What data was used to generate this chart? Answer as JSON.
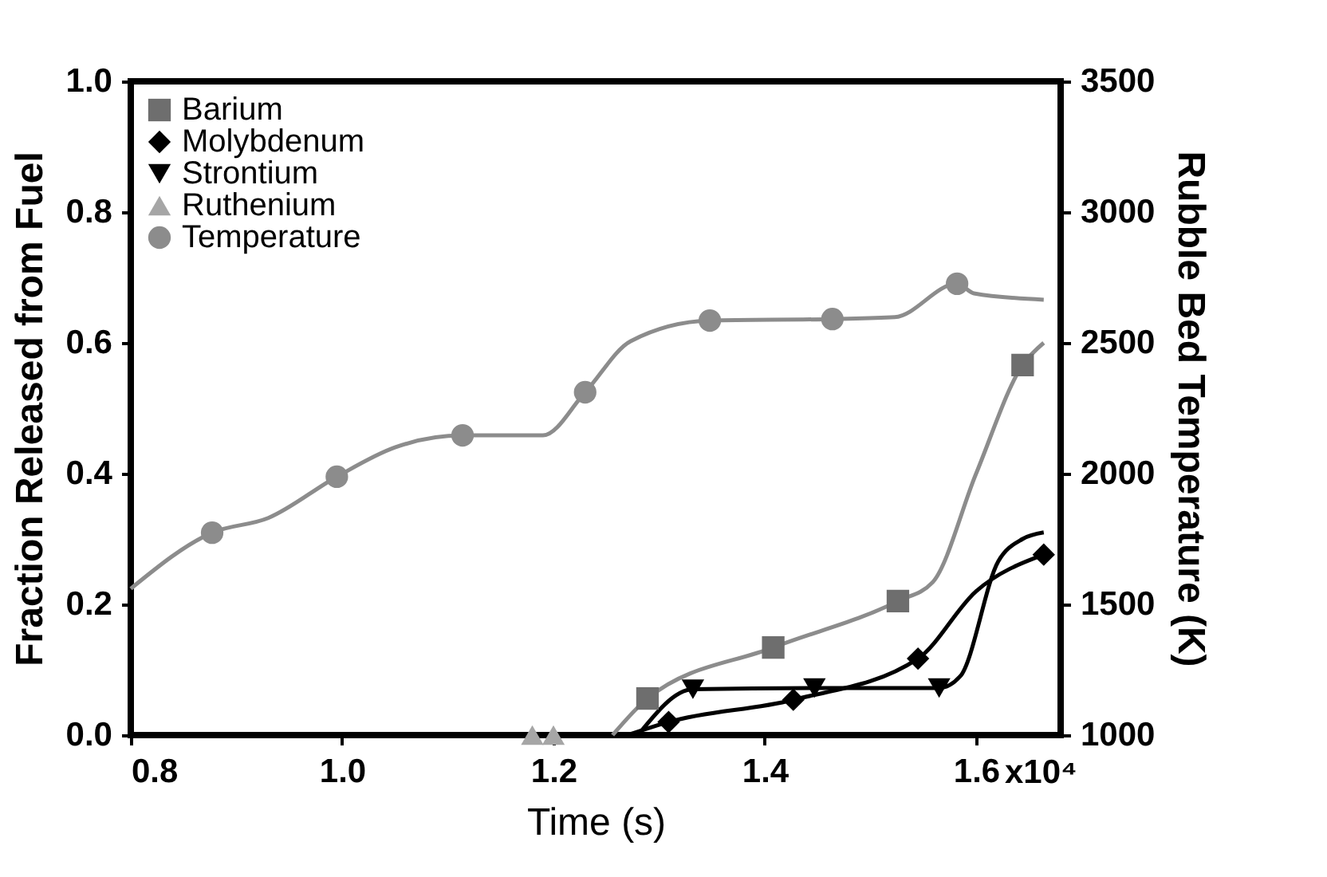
{
  "chart_data": {
    "type": "line",
    "xlabel": "Time (s)",
    "ylabel": "Fraction Released from Fuel",
    "y2label": "Rubble Bed Temperature (K)",
    "xlim": [
      0.8,
      1.68
    ],
    "xticks": [
      {
        "value": 0.8,
        "label": "0.8"
      },
      {
        "value": 1.0,
        "label": "1.0"
      },
      {
        "value": 1.2,
        "label": "1.2"
      },
      {
        "value": 1.4,
        "label": "1.4"
      },
      {
        "value": 1.6,
        "label": "1.6"
      }
    ],
    "annotations": [
      "x10⁴"
    ],
    "ylim": [
      0,
      1
    ],
    "yticks": [
      {
        "value": 0,
        "label": "0.0"
      },
      {
        "value": 0.2,
        "label": "0.2"
      },
      {
        "value": 0.4,
        "label": "0.4"
      },
      {
        "value": 0.6,
        "label": "0.6"
      },
      {
        "value": 0.8,
        "label": "0.8"
      },
      {
        "value": 1,
        "label": "1.0"
      }
    ],
    "y2lim": [
      1000,
      3500
    ],
    "y2ticks": [
      1000,
      1500,
      2000,
      2500,
      3000,
      3500
    ],
    "grid": false,
    "legend": "top left",
    "series": [
      {
        "type": "line",
        "marker": "none",
        "color": "#8c8c8c",
        "x": [
          1.256,
          1.289,
          1.408,
          1.526,
          1.559,
          1.6,
          1.644,
          1.664
        ],
        "values": [
          0,
          0.056,
          0.134,
          0.205,
          0.234,
          0.4,
          0.566,
          0.6
        ]
      },
      {
        "type": "line",
        "marker": "none",
        "color": "#000000",
        "x": [
          1.27,
          1.309,
          1.427,
          1.545,
          1.6,
          1.664
        ],
        "values": [
          0,
          0.02,
          0.054,
          0.117,
          0.22,
          0.276
        ]
      },
      {
        "type": "line",
        "marker": "none",
        "color": "#000000",
        "x": [
          1.28,
          1.332,
          1.447,
          1.565,
          1.585,
          1.621,
          1.644,
          1.664
        ],
        "values": [
          0,
          0.07,
          0.072,
          0.072,
          0.09,
          0.266,
          0.3,
          0.31
        ]
      },
      {
        "type": "line",
        "marker": "none",
        "color": "#8c8c8c",
        "axis": "y2",
        "x": [
          0.8,
          0.877,
          0.93,
          0.995,
          1.05,
          1.114,
          1.19,
          1.23,
          1.273,
          1.348,
          1.464,
          1.523,
          1.582,
          1.598,
          1.664
        ],
        "values": [
          1560,
          1774,
          1830,
          1988,
          2100,
          2146,
          2146,
          2311,
          2506,
          2585,
          2591,
          2598,
          2726,
          2689,
          2665
        ]
      },
      {
        "name": "Barium",
        "type": "scatter",
        "marker": "square",
        "color": "#6e6e6e",
        "x": [
          1.289,
          1.408,
          1.526,
          1.644
        ],
        "values": [
          0.056,
          0.134,
          0.205,
          0.566
        ]
      },
      {
        "name": "Molybdenum",
        "type": "scatter",
        "marker": "diamond",
        "color": "#000000",
        "x": [
          1.309,
          1.427,
          1.545,
          1.664
        ],
        "values": [
          0.02,
          0.054,
          0.117,
          0.276
        ]
      },
      {
        "name": "Strontium",
        "type": "scatter",
        "marker": "triangle-down",
        "color": "#000000",
        "x": [
          1.332,
          1.447,
          1.565
        ],
        "values": [
          0.07,
          0.072,
          0.072
        ]
      },
      {
        "name": "Ruthenium",
        "type": "scatter",
        "marker": "triangle",
        "color": "#a6a6a6",
        "x": [
          1.18,
          1.2
        ],
        "values": [
          0,
          0
        ]
      },
      {
        "name": "Temperature",
        "type": "scatter",
        "marker": "circle",
        "color": "#8c8c8c",
        "axis": "y2",
        "x": [
          0.877,
          0.995,
          1.114,
          1.23,
          1.348,
          1.464,
          1.582
        ],
        "values": [
          1774,
          1988,
          2146,
          2311,
          2585,
          2591,
          2726
        ]
      }
    ]
  }
}
